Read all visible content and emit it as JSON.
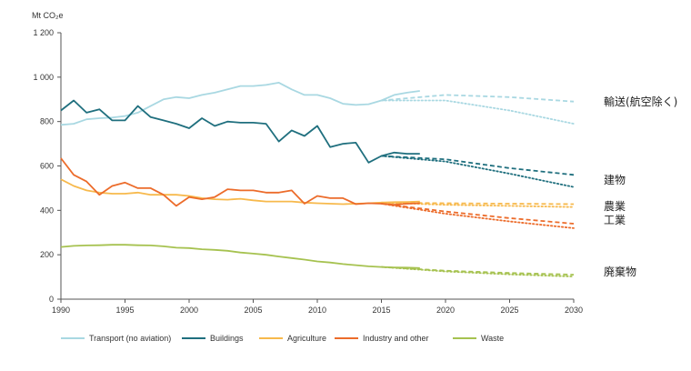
{
  "chart_data": {
    "type": "line",
    "unit_label": "Mt CO₂e",
    "x_ticks": [
      "1990",
      "1995",
      "2000",
      "2005",
      "2010",
      "2015",
      "2020",
      "2025",
      "2030"
    ],
    "y_ticks": [
      "0",
      "200",
      "400",
      "600",
      "800",
      "1 000",
      "1 200"
    ],
    "xlim": [
      1990,
      2030
    ],
    "ylim": [
      0,
      1200
    ],
    "grid": false,
    "legend_position": "bottom",
    "colors": {
      "transport": "#a9d8e2",
      "buildings": "#1f6f7e",
      "agriculture": "#f7b94c",
      "industry": "#ec6c2b",
      "waste": "#a6c250"
    },
    "series": [
      {
        "key": "transport",
        "name": "Transport (no aviation)",
        "side_label": "輸送(航空除く)",
        "x": [
          1990,
          1991,
          1992,
          1993,
          1994,
          1995,
          1996,
          1997,
          1998,
          1999,
          2000,
          2001,
          2002,
          2003,
          2004,
          2005,
          2006,
          2007,
          2008,
          2009,
          2010,
          2011,
          2012,
          2013,
          2014,
          2015,
          2016,
          2017,
          2018
        ],
        "values": [
          785,
          790,
          810,
          815,
          818,
          825,
          840,
          870,
          900,
          910,
          905,
          920,
          930,
          945,
          960,
          960,
          965,
          975,
          945,
          920,
          920,
          905,
          880,
          875,
          878,
          895,
          920,
          930,
          938
        ],
        "projection_dashed": {
          "x": [
            2015,
            2020,
            2025,
            2030
          ],
          "values": [
            895,
            920,
            910,
            890
          ]
        },
        "projection_dotted": {
          "x": [
            2015,
            2020,
            2025,
            2030
          ],
          "values": [
            895,
            895,
            850,
            790
          ]
        }
      },
      {
        "key": "buildings",
        "name": "Buildings",
        "side_label": "建物",
        "x": [
          1990,
          1991,
          1992,
          1993,
          1994,
          1995,
          1996,
          1997,
          1998,
          1999,
          2000,
          2001,
          2002,
          2003,
          2004,
          2005,
          2006,
          2007,
          2008,
          2009,
          2010,
          2011,
          2012,
          2013,
          2014,
          2015,
          2016,
          2017,
          2018
        ],
        "values": [
          850,
          895,
          840,
          855,
          805,
          805,
          870,
          820,
          805,
          790,
          770,
          815,
          780,
          800,
          795,
          795,
          790,
          710,
          760,
          735,
          780,
          685,
          700,
          705,
          615,
          645,
          660,
          655,
          655
        ],
        "projection_dashed": {
          "x": [
            2015,
            2020,
            2025,
            2030
          ],
          "values": [
            645,
            630,
            590,
            560
          ]
        },
        "projection_dotted": {
          "x": [
            2015,
            2020,
            2025,
            2030
          ],
          "values": [
            645,
            620,
            565,
            505
          ]
        }
      },
      {
        "key": "agriculture",
        "name": "Agriculture",
        "side_label": "農業",
        "x": [
          1990,
          1991,
          1992,
          1993,
          1994,
          1995,
          1996,
          1997,
          1998,
          1999,
          2000,
          2001,
          2002,
          2003,
          2004,
          2005,
          2006,
          2007,
          2008,
          2009,
          2010,
          2011,
          2012,
          2013,
          2014,
          2015,
          2016,
          2017,
          2018
        ],
        "values": [
          540,
          510,
          490,
          480,
          475,
          475,
          480,
          470,
          470,
          470,
          465,
          455,
          450,
          448,
          452,
          445,
          440,
          440,
          440,
          435,
          432,
          430,
          428,
          430,
          432,
          435,
          437,
          438,
          440
        ],
        "projection_dashed": {
          "x": [
            2015,
            2020,
            2025,
            2030
          ],
          "values": [
            435,
            432,
            430,
            428
          ]
        },
        "projection_dotted": {
          "x": [
            2015,
            2020,
            2025,
            2030
          ],
          "values": [
            435,
            425,
            420,
            415
          ]
        }
      },
      {
        "key": "industry",
        "name": "Industry and other",
        "side_label": "工業",
        "x": [
          1990,
          1991,
          1992,
          1993,
          1994,
          1995,
          1996,
          1997,
          1998,
          1999,
          2000,
          2001,
          2002,
          2003,
          2004,
          2005,
          2006,
          2007,
          2008,
          2009,
          2010,
          2011,
          2012,
          2013,
          2014,
          2015,
          2016,
          2017,
          2018
        ],
        "values": [
          635,
          560,
          530,
          470,
          510,
          525,
          500,
          500,
          470,
          420,
          460,
          450,
          460,
          495,
          490,
          490,
          480,
          480,
          490,
          430,
          465,
          455,
          455,
          428,
          432,
          430,
          425,
          430,
          432
        ],
        "projection_dashed": {
          "x": [
            2015,
            2020,
            2025,
            2030
          ],
          "values": [
            430,
            395,
            365,
            340
          ]
        },
        "projection_dotted": {
          "x": [
            2015,
            2020,
            2025,
            2030
          ],
          "values": [
            430,
            385,
            350,
            320
          ]
        }
      },
      {
        "key": "waste",
        "name": "Waste",
        "side_label": "廃棄物",
        "x": [
          1990,
          1991,
          1992,
          1993,
          1994,
          1995,
          1996,
          1997,
          1998,
          1999,
          2000,
          2001,
          2002,
          2003,
          2004,
          2005,
          2006,
          2007,
          2008,
          2009,
          2010,
          2011,
          2012,
          2013,
          2014,
          2015,
          2016,
          2017,
          2018
        ],
        "values": [
          235,
          240,
          242,
          243,
          245,
          245,
          243,
          242,
          238,
          232,
          230,
          225,
          222,
          218,
          210,
          205,
          200,
          192,
          185,
          178,
          170,
          165,
          158,
          153,
          148,
          145,
          143,
          142,
          140
        ],
        "projection_dashed": {
          "x": [
            2015,
            2020,
            2025,
            2030
          ],
          "values": [
            145,
            128,
            118,
            110
          ]
        },
        "projection_dotted": {
          "x": [
            2015,
            2020,
            2025,
            2030
          ],
          "values": [
            145,
            125,
            112,
            102
          ]
        }
      }
    ]
  }
}
